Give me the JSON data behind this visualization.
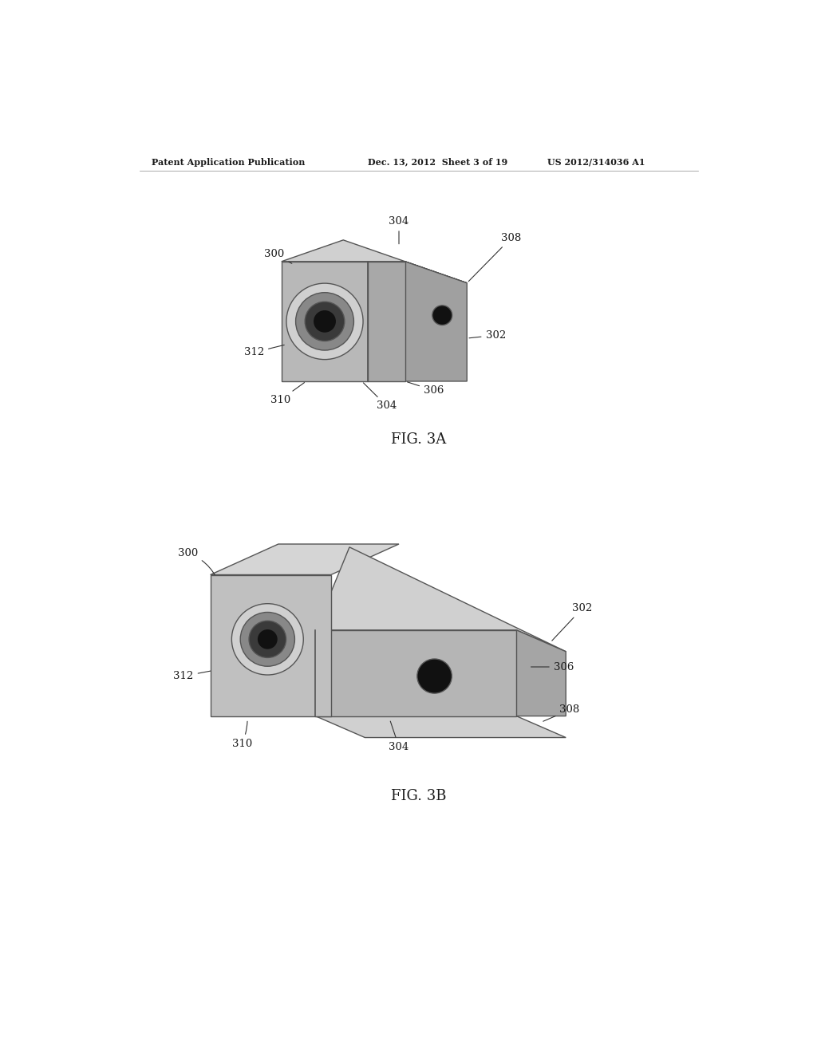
{
  "bg_color": "#ffffff",
  "text_color": "#1a1a1a",
  "header_left": "Patent Application Publication",
  "header_mid": "Dec. 13, 2012  Sheet 3 of 19",
  "header_right": "US 2012/314036 A1",
  "fig3a_label": "FIG. 3A",
  "fig3b_label": "FIG. 3B",
  "face_front_3a": "#b8b8b8",
  "face_right_3a": "#a0a0a0",
  "face_top_3a": "#d0d0d0",
  "face_front_3b_main": "#c0c0c0",
  "face_top_3b_main": "#d5d5d5",
  "face_front_3b_ext": "#b5b5b5",
  "face_top_3b_ext": "#d0d0d0",
  "face_right_3b_ext": "#a5a5a5",
  "edge_color": "#555555",
  "lens_outer": "#d0d0d0",
  "lens_mid": "#888888",
  "lens_inner": "#3a3a3a",
  "lens_core": "#111111",
  "dot_color": "#111111"
}
